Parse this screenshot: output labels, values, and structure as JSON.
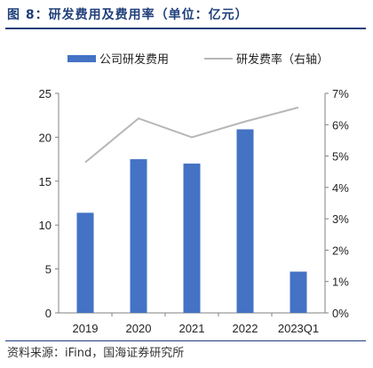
{
  "figure": {
    "title": "图 8：研发费用及费用率（单位：亿元）",
    "source": "资料来源：iFind，国海证券研究所"
  },
  "chart_data": {
    "type": "bar",
    "categories": [
      "2019",
      "2020",
      "2021",
      "2022",
      "2023Q1"
    ],
    "series": [
      {
        "name": "公司研发费用",
        "type": "bar",
        "axis": "left",
        "color": "#4472c4",
        "values": [
          11.4,
          17.5,
          17.0,
          20.9,
          4.7
        ]
      },
      {
        "name": "研发费率（右轴）",
        "type": "line",
        "axis": "right",
        "color": "#b7b7b7",
        "values": [
          4.8,
          6.2,
          5.6,
          6.1,
          6.55
        ]
      }
    ],
    "y_left": {
      "min": 0,
      "max": 25,
      "ticks": [
        0,
        5,
        10,
        15,
        20,
        25
      ]
    },
    "y_right": {
      "min": 0,
      "max": 7,
      "ticks": [
        "0%",
        "1%",
        "2%",
        "3%",
        "4%",
        "5%",
        "6%",
        "7%"
      ]
    },
    "legend": "top",
    "grid": false
  }
}
